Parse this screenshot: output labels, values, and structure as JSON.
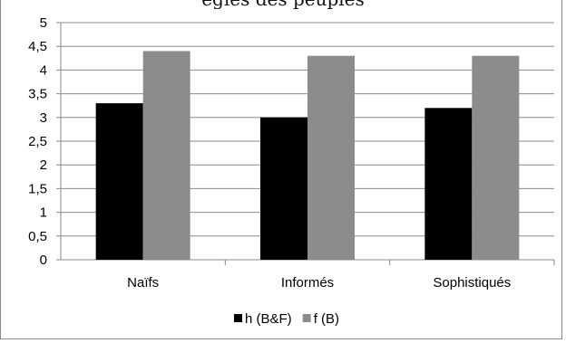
{
  "cut_off_text": "egies des peuples",
  "chart_data": {
    "type": "bar",
    "categories": [
      "Naïfs",
      "Informés",
      "Sophistiqués"
    ],
    "series": [
      {
        "name": "h (B&F)",
        "values": [
          3.3,
          3.0,
          3.2
        ],
        "color": "#000000"
      },
      {
        "name": "f (B)",
        "values": [
          4.4,
          4.3,
          4.3
        ],
        "color": "#8c8c8c"
      }
    ],
    "y_ticks": [
      "0",
      "0,5",
      "1",
      "1,5",
      "2",
      "2,5",
      "3",
      "3,5",
      "4",
      "4,5",
      "5"
    ],
    "ylim": [
      0,
      5
    ],
    "grid": true,
    "legend_position": "bottom"
  }
}
